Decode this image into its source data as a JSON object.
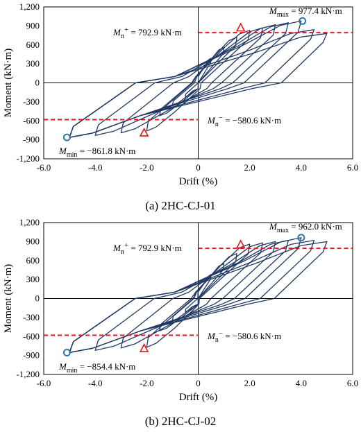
{
  "chart_data": [
    {
      "type": "line",
      "caption": "(a) 2HC-CJ-01",
      "xlabel": "Drift (%)",
      "ylabel": "Moment (kN·m)",
      "xlim": [
        -6,
        6
      ],
      "ylim": [
        -1200,
        1200
      ],
      "xticks": [
        "-6.0",
        "-4.0",
        "-2.0",
        "0",
        "2.0",
        "4.0",
        "6.0"
      ],
      "yticks": [
        "1,200",
        "900",
        "600",
        "300",
        "0",
        "-300",
        "-600",
        "-900",
        "-1,200"
      ],
      "grid": false,
      "colors": {
        "curve": "#1f3864",
        "dashed": "#e8141c",
        "max_min_marker": "#2e75b6",
        "yield_marker": "#e8141c"
      },
      "hysteresis_peaks": {
        "positive_drift": [
          0.5,
          1.0,
          1.5,
          2.0,
          2.5,
          3.0,
          3.5,
          4.0,
          4.5,
          5.0
        ],
        "positive_moment": [
          390,
          560,
          720,
          830,
          870,
          920,
          950,
          977,
          840,
          780
        ],
        "negative_drift": [
          -0.5,
          -1.0,
          -1.5,
          -2.0,
          -3.0,
          -4.0,
          -5.0
        ],
        "negative_moment": [
          -220,
          -360,
          -520,
          -760,
          -790,
          -830,
          -862
        ]
      },
      "Mn_pos": {
        "label_main": "M",
        "label_sub": "n",
        "label_sup": "+",
        "label_val": " = 792.9 kN·m",
        "value": 792.9
      },
      "Mn_neg": {
        "label_main": "M",
        "label_sub": "n",
        "label_sup": "−",
        "label_val": " = −580.6 kN·m",
        "value": -580.6
      },
      "Mmax": {
        "label_main": "M",
        "label_sub": "max",
        "label_val": " = 977.4 kN·m",
        "drift": 4.05,
        "value": 977.4
      },
      "Mmin": {
        "label_main": "M",
        "label_sub": "min",
        "label_val": " = −861.8 kN·m",
        "drift": -5.1,
        "value": -861.8
      },
      "yield_pos": {
        "drift": 1.65,
        "value": 870
      },
      "yield_neg": {
        "drift": -2.1,
        "value": -790
      }
    },
    {
      "type": "line",
      "caption": "(b) 2HC-CJ-02",
      "xlabel": "Drift (%)",
      "ylabel": "Moment (kN·m)",
      "xlim": [
        -6,
        6
      ],
      "ylim": [
        -1200,
        1200
      ],
      "xticks": [
        "-6.0",
        "-4.0",
        "-2.0",
        "0",
        "2.0",
        "4.0",
        "6.0"
      ],
      "yticks": [
        "1,200",
        "900",
        "600",
        "300",
        "0",
        "-300",
        "-600",
        "-900",
        "-1,200"
      ],
      "grid": false,
      "colors": {
        "curve": "#1f3864",
        "dashed": "#e8141c",
        "max_min_marker": "#2e75b6",
        "yield_marker": "#e8141c"
      },
      "hysteresis_peaks": {
        "positive_drift": [
          0.5,
          1.0,
          1.5,
          2.0,
          2.5,
          3.0,
          3.5,
          4.0,
          4.5,
          5.0
        ],
        "positive_moment": [
          380,
          550,
          710,
          860,
          880,
          900,
          920,
          962,
          920,
          900
        ],
        "negative_drift": [
          -0.5,
          -1.0,
          -1.5,
          -2.0,
          -3.0,
          -4.0,
          -5.0
        ],
        "negative_moment": [
          -210,
          -350,
          -510,
          -770,
          -780,
          -820,
          -854
        ]
      },
      "Mn_pos": {
        "label_main": "M",
        "label_sub": "n",
        "label_sup": "+",
        "label_val": " = 792.9 kN·m",
        "value": 792.9
      },
      "Mn_neg": {
        "label_main": "M",
        "label_sub": "n",
        "label_sup": "−",
        "label_val": " = −580.6 kN·m",
        "value": -580.6
      },
      "Mmax": {
        "label_main": "M",
        "label_sub": "max",
        "label_val": " = 962.0 kN·m",
        "drift": 4.0,
        "value": 962.0
      },
      "Mmin": {
        "label_main": "M",
        "label_sub": "min",
        "label_val": " = −854.4 kN·m",
        "drift": -5.1,
        "value": -854.4
      },
      "yield_pos": {
        "drift": 1.65,
        "value": 850
      },
      "yield_neg": {
        "drift": -2.1,
        "value": -790
      }
    }
  ]
}
